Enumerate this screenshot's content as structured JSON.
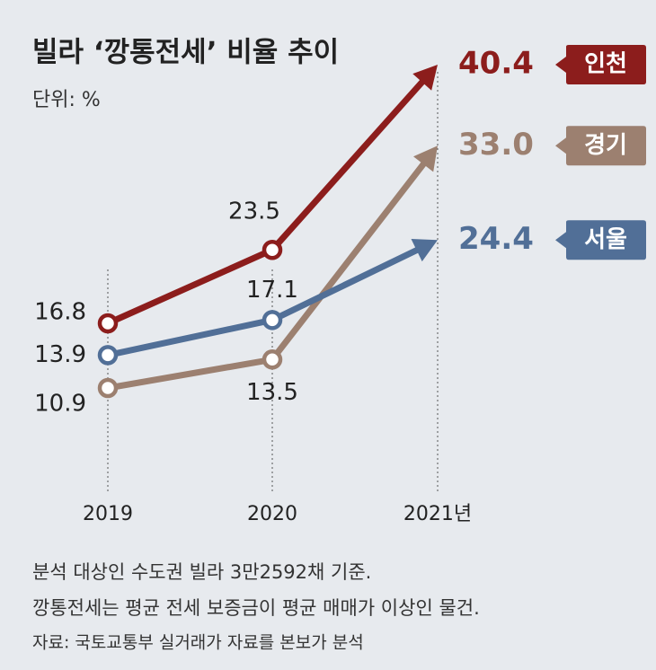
{
  "chart_data": {
    "type": "line",
    "title": "빌라 ‘깡통전세’ 비율 추이",
    "unit": "단위: %",
    "categories": [
      "2019",
      "2020",
      "2021년"
    ],
    "series": [
      {
        "name": "인천",
        "color": "#8c1d1c",
        "values": [
          16.8,
          23.5,
          40.4
        ]
      },
      {
        "name": "경기",
        "color": "#9c8070",
        "values": [
          10.9,
          13.5,
          33.0
        ],
        "value_labels": [
          "10.9",
          "13.5",
          "33.0"
        ]
      },
      {
        "name": "서울",
        "color": "#516f97",
        "values": [
          13.9,
          17.1,
          24.4
        ]
      }
    ],
    "notes": [
      "분석 대상인 수도권 빌라 3만2592채 기준.",
      "깡통전세는 평균 전세 보증금이 평균 매매가 이상인 물건.",
      "자료: 국토교통부 실거래가 자료를 본보가 분석"
    ]
  }
}
